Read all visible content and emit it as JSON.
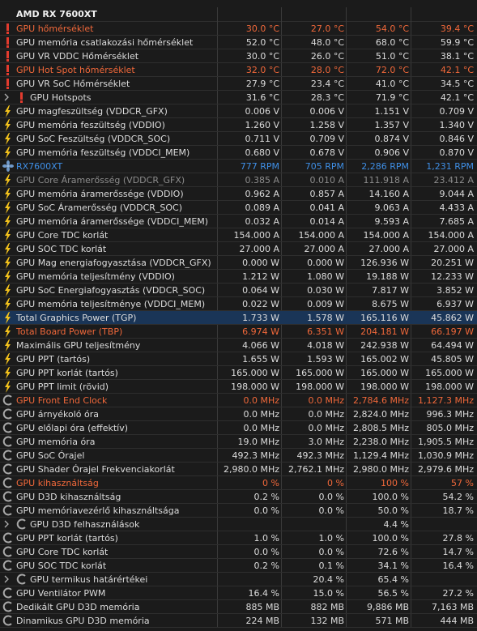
{
  "header": {
    "title": "AMD RX 7600XT"
  },
  "rows": [
    {
      "label": "GPU hőmérséklet",
      "values": [
        "30.0 °C",
        "27.0 °C",
        "54.0 °C",
        "39.4 °C"
      ],
      "icon": "temp",
      "color": "#f0683a"
    },
    {
      "label": "GPU memória csatlakozási hőmérséklet",
      "values": [
        "52.0 °C",
        "48.0 °C",
        "68.0 °C",
        "59.9 °C"
      ],
      "icon": "temp"
    },
    {
      "label": "GPU VR VDDC Hőmérséklet",
      "values": [
        "30.0 °C",
        "26.0 °C",
        "51.0 °C",
        "38.1 °C"
      ],
      "icon": "temp"
    },
    {
      "label": "GPU Hot Spot hőmérséklet",
      "values": [
        "32.0 °C",
        "28.0 °C",
        "72.0 °C",
        "42.1 °C"
      ],
      "icon": "temp",
      "color": "#f0683a"
    },
    {
      "label": "GPU VR SoC Hőmérséklet",
      "values": [
        "27.9 °C",
        "23.4 °C",
        "41.0 °C",
        "34.5 °C"
      ],
      "icon": "temp"
    },
    {
      "label": "GPU Hotspots",
      "values": [
        "31.6 °C",
        "28.3 °C",
        "71.9 °C",
        "42.1 °C"
      ],
      "icon": "temp",
      "group": true
    },
    {
      "label": "GPU magfeszültség (VDDCR_GFX)",
      "values": [
        "0.006 V",
        "0.006 V",
        "1.151 V",
        "0.709 V"
      ],
      "icon": "volt"
    },
    {
      "label": "GPU memória feszültség (VDDIO)",
      "values": [
        "1.260 V",
        "1.258 V",
        "1.357 V",
        "1.340 V"
      ],
      "icon": "volt"
    },
    {
      "label": "GPU SoC Feszültség (VDDCR_SOC)",
      "values": [
        "0.711 V",
        "0.709 V",
        "0.874 V",
        "0.846 V"
      ],
      "icon": "volt"
    },
    {
      "label": "GPU memória feszültség (VDDCI_MEM)",
      "values": [
        "0.680 V",
        "0.678 V",
        "0.906 V",
        "0.870 V"
      ],
      "icon": "volt"
    },
    {
      "label": "RX7600XT",
      "values": [
        "777 RPM",
        "705 RPM",
        "2,286 RPM",
        "1,231 RPM"
      ],
      "icon": "fan",
      "color": "#3f8fe6"
    },
    {
      "label": "GPU Core Áramerősség (VDDCR_GFX)",
      "values": [
        "0.385 A",
        "0.010 A",
        "111.918 A",
        "23.412 A"
      ],
      "icon": "volt",
      "color": "#8c8c8c"
    },
    {
      "label": "GPU memória áramerőssége (VDDIO)",
      "values": [
        "0.962 A",
        "0.857 A",
        "14.160 A",
        "9.044 A"
      ],
      "icon": "volt"
    },
    {
      "label": "GPU SoC Áramerősség (VDDCR_SOC)",
      "values": [
        "0.089 A",
        "0.041 A",
        "9.063 A",
        "4.433 A"
      ],
      "icon": "volt"
    },
    {
      "label": "GPU memória áramerőssége (VDDCI_MEM)",
      "values": [
        "0.032 A",
        "0.014 A",
        "9.593 A",
        "7.685 A"
      ],
      "icon": "volt"
    },
    {
      "label": "GPU Core TDC korlát",
      "values": [
        "154.000 A",
        "154.000 A",
        "154.000 A",
        "154.000 A"
      ],
      "icon": "volt"
    },
    {
      "label": "GPU SOC TDC korlát",
      "values": [
        "27.000 A",
        "27.000 A",
        "27.000 A",
        "27.000 A"
      ],
      "icon": "volt"
    },
    {
      "label": "GPU Mag energiafogyasztása (VDDCR_GFX)",
      "values": [
        "0.000 W",
        "0.000 W",
        "126.936 W",
        "20.251 W"
      ],
      "icon": "volt"
    },
    {
      "label": "GPU memória teljesítmény (VDDIO)",
      "values": [
        "1.212 W",
        "1.080 W",
        "19.188 W",
        "12.233 W"
      ],
      "icon": "volt"
    },
    {
      "label": "GPU SoC Energiafogyasztás (VDDCR_SOC)",
      "values": [
        "0.064 W",
        "0.030 W",
        "7.817 W",
        "3.852 W"
      ],
      "icon": "volt"
    },
    {
      "label": "GPU memória teljesítménye (VDDCI_MEM)",
      "values": [
        "0.022 W",
        "0.009 W",
        "8.675 W",
        "6.937 W"
      ],
      "icon": "volt"
    },
    {
      "label": "Total Graphics Power (TGP)",
      "values": [
        "1.733 W",
        "1.578 W",
        "165.116 W",
        "45.862 W"
      ],
      "icon": "volt",
      "selected": true
    },
    {
      "label": "Total Board Power (TBP)",
      "values": [
        "6.974 W",
        "6.351 W",
        "204.181 W",
        "66.197 W"
      ],
      "icon": "volt",
      "color": "#f0683a"
    },
    {
      "label": "Maximális GPU teljesítmény",
      "values": [
        "4.066 W",
        "4.018 W",
        "242.938 W",
        "64.494 W"
      ],
      "icon": "volt"
    },
    {
      "label": "GPU PPT (tartós)",
      "values": [
        "1.655 W",
        "1.593 W",
        "165.002 W",
        "45.805 W"
      ],
      "icon": "volt"
    },
    {
      "label": "GPU PPT korlát (tartós)",
      "values": [
        "165.000 W",
        "165.000 W",
        "165.000 W",
        "165.000 W"
      ],
      "icon": "volt"
    },
    {
      "label": "GPU PPT limit (rövid)",
      "values": [
        "198.000 W",
        "198.000 W",
        "198.000 W",
        "198.000 W"
      ],
      "icon": "volt"
    },
    {
      "label": "GPU Front End Clock",
      "values": [
        "0.0 MHz",
        "0.0 MHz",
        "2,784.6 MHz",
        "1,127.3 MHz"
      ],
      "icon": "clock",
      "color": "#f0683a"
    },
    {
      "label": "GPU árnyékoló óra",
      "values": [
        "0.0 MHz",
        "0.0 MHz",
        "2,824.0 MHz",
        "996.3 MHz"
      ],
      "icon": "clock"
    },
    {
      "label": "GPU előlapi óra (effektív)",
      "values": [
        "0.0 MHz",
        "0.0 MHz",
        "2,808.5 MHz",
        "805.0 MHz"
      ],
      "icon": "clock"
    },
    {
      "label": "GPU memória óra",
      "values": [
        "19.0 MHz",
        "3.0 MHz",
        "2,238.0 MHz",
        "1,905.5 MHz"
      ],
      "icon": "clock"
    },
    {
      "label": "GPU SoC Órajel",
      "values": [
        "492.3 MHz",
        "492.3 MHz",
        "1,129.4 MHz",
        "1,030.9 MHz"
      ],
      "icon": "clock"
    },
    {
      "label": "GPU Shader Órajel Frekvenciakorlát",
      "values": [
        "2,980.0 MHz",
        "2,762.1 MHz",
        "2,980.0 MHz",
        "2,979.6 MHz"
      ],
      "icon": "clock"
    },
    {
      "label": "GPU kihasználtság",
      "values": [
        "0 %",
        "0 %",
        "100 %",
        "57 %"
      ],
      "icon": "clock",
      "color": "#f0683a"
    },
    {
      "label": "GPU D3D kihasználtság",
      "values": [
        "0.2 %",
        "0.0 %",
        "100.0 %",
        "54.2 %"
      ],
      "icon": "clock"
    },
    {
      "label": "GPU memóriavezérlő kihasználtsága",
      "values": [
        "0.0 %",
        "0.0 %",
        "50.0 %",
        "18.7 %"
      ],
      "icon": "clock"
    },
    {
      "label": "GPU D3D felhasználások",
      "values": [
        null,
        null,
        "4.4 %",
        null
      ],
      "icon": "clock",
      "group": true
    },
    {
      "label": "GPU PPT korlát (tartós)",
      "values": [
        "1.0 %",
        "1.0 %",
        "100.0 %",
        "27.8 %"
      ],
      "icon": "clock"
    },
    {
      "label": "GPU Core TDC korlát",
      "values": [
        "0.0 %",
        "0.0 %",
        "72.6 %",
        "14.7 %"
      ],
      "icon": "clock"
    },
    {
      "label": "GPU SOC TDC korlát",
      "values": [
        "0.2 %",
        "0.1 %",
        "34.1 %",
        "16.4 %"
      ],
      "icon": "clock"
    },
    {
      "label": "GPU termikus határértékei",
      "values": [
        null,
        "20.4 %",
        "65.4 %",
        null
      ],
      "icon": "clock",
      "group": true
    },
    {
      "label": "GPU Ventilátor PWM",
      "values": [
        "16.4 %",
        "15.0 %",
        "56.5 %",
        "27.2 %"
      ],
      "icon": "clock"
    },
    {
      "label": "Dedikált GPU D3D memória",
      "values": [
        "885 MB",
        "882 MB",
        "9,886 MB",
        "7,163 MB"
      ],
      "icon": "clock"
    },
    {
      "label": "Dinamikus GPU D3D memória",
      "values": [
        "224 MB",
        "132 MB",
        "571 MB",
        "444 MB"
      ],
      "icon": "clock"
    }
  ]
}
